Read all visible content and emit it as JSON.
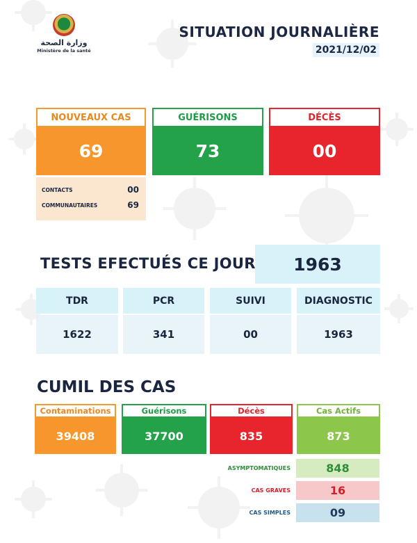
{
  "logo": {
    "arabic": "وزارة الصحة",
    "french": "Ministère de la santé"
  },
  "header": {
    "title": "SITUATION JOURNALIÈRE",
    "date": "2021/12/02"
  },
  "daily": {
    "new_cases": {
      "label": "NOUVEAUX CAS",
      "value": "69"
    },
    "recoveries": {
      "label": "GUÉRISONS",
      "value": "73"
    },
    "deaths": {
      "label": "DÉCÈS",
      "value": "00"
    }
  },
  "new_cases_breakdown": [
    {
      "label": "CONTACTS",
      "value": "00"
    },
    {
      "label": "COMMUNAUTAIRES",
      "value": "69"
    }
  ],
  "tests": {
    "title": "TESTS EFECTUÉS CE JOUR",
    "total": "1963",
    "columns": [
      {
        "header": "TDR",
        "value": "1622"
      },
      {
        "header": "PCR",
        "value": "341"
      },
      {
        "header": "SUIVI",
        "value": "00"
      },
      {
        "header": "DIAGNOSTIC",
        "value": "1963"
      }
    ]
  },
  "cumulative": {
    "title": "CUMIL DES CAS",
    "contaminations": {
      "label": "Contaminations",
      "value": "39408"
    },
    "recoveries": {
      "label": "Guérisons",
      "value": "37700"
    },
    "deaths": {
      "label": "Décès",
      "value": "835"
    },
    "active": {
      "label": "Cas Actifs",
      "value": "873"
    }
  },
  "active_breakdown": [
    {
      "label": "ASYMPTOMATIQUES",
      "value": "848"
    },
    {
      "label": "CAS GRAVES",
      "value": "16"
    },
    {
      "label": "CAS SIMPLES",
      "value": "09"
    }
  ],
  "colors": {
    "orange": "#f7962d",
    "green": "#23a249",
    "red": "#e8252d",
    "light_green": "#8cc64a",
    "light_blue": "#d8f2f9",
    "navy": "#1b2744"
  }
}
